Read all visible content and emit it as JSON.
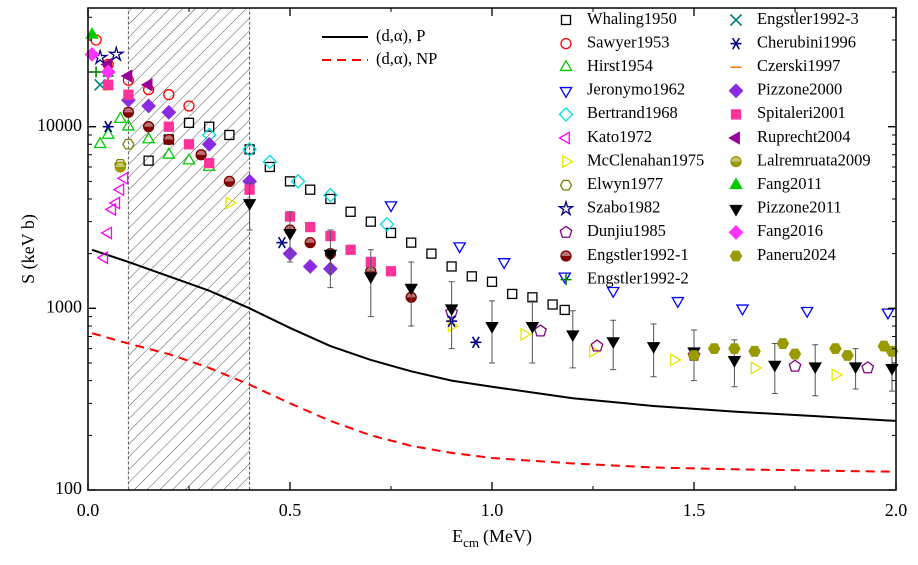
{
  "chart_data": {
    "type": "scatter",
    "x_label": {
      "main": "E",
      "sub": "cm",
      "unit": "(MeV)"
    },
    "y_label": "S (keV b)",
    "xlim": [
      0,
      2.0
    ],
    "xticks": [
      {
        "value": 0,
        "label": "0.0"
      },
      0.5,
      {
        "value": 1,
        "label": "1.0"
      },
      1.5,
      {
        "value": 2,
        "label": "2.0"
      }
    ],
    "ylim": [
      100,
      45000
    ],
    "yticks": [
      100,
      1000,
      10000
    ],
    "log_y": true,
    "shaded_region": [
      0.1,
      0.4
    ],
    "lines": [
      {
        "name": "(d,α), P",
        "color": "#000000",
        "dash": false,
        "x": [
          0.01,
          0.1,
          0.2,
          0.3,
          0.4,
          0.5,
          0.6,
          0.7,
          0.8,
          0.9,
          1.0,
          1.2,
          1.4,
          1.6,
          1.8,
          2.0
        ],
        "values": [
          2100,
          1800,
          1500,
          1250,
          1000,
          780,
          620,
          520,
          450,
          400,
          370,
          320,
          290,
          270,
          255,
          240
        ]
      },
      {
        "name": "(d,α), NP",
        "color": "#ff0000",
        "dash": true,
        "x": [
          0.01,
          0.1,
          0.2,
          0.3,
          0.4,
          0.5,
          0.6,
          0.7,
          0.8,
          0.9,
          1.0,
          1.2,
          1.4,
          1.6,
          1.8,
          2.0
        ],
        "values": [
          730,
          640,
          560,
          470,
          380,
          300,
          240,
          200,
          175,
          160,
          150,
          140,
          133,
          130,
          128,
          126
        ]
      }
    ],
    "series": [
      {
        "name": "Whaling1950",
        "color": "#000000",
        "marker": "square",
        "filled": false,
        "x": [
          0.15,
          0.2,
          0.25,
          0.3,
          0.35,
          0.4,
          0.45,
          0.5,
          0.55,
          0.6,
          0.65,
          0.7,
          0.75,
          0.8,
          0.85,
          0.9,
          0.95,
          1.0,
          1.05,
          1.1,
          1.15,
          1.18
        ],
        "values": [
          6500,
          8500,
          10500,
          10000,
          9000,
          7500,
          6000,
          5000,
          4500,
          4000,
          3400,
          3000,
          2600,
          2300,
          2000,
          1700,
          1500,
          1400,
          1200,
          1150,
          1050,
          980
        ]
      },
      {
        "name": "Sawyer1953",
        "color": "#ff0000",
        "marker": "circle",
        "filled": false,
        "x": [
          0.02,
          0.05,
          0.1,
          0.15,
          0.2,
          0.25
        ],
        "values": [
          30000,
          22000,
          18000,
          16000,
          15000,
          13000
        ]
      },
      {
        "name": "Hirst1954",
        "color": "#00cc00",
        "marker": "triangle-up",
        "filled": false,
        "x": [
          0.03,
          0.05,
          0.08,
          0.1,
          0.15,
          0.2,
          0.25,
          0.3
        ],
        "values": [
          8000,
          9000,
          11000,
          10000,
          8500,
          7000,
          6500,
          6000
        ]
      },
      {
        "name": "Jeronymo1962",
        "color": "#0000ff",
        "marker": "triangle-down",
        "filled": false,
        "x": [
          0.75,
          0.92,
          1.03,
          1.18,
          1.3,
          1.46,
          1.62,
          1.78,
          1.98
        ],
        "values": [
          3700,
          2200,
          1800,
          1500,
          1250,
          1100,
          1000,
          970,
          950
        ]
      },
      {
        "name": "Bertrand1968",
        "color": "#00dddd",
        "marker": "diamond",
        "filled": false,
        "x": [
          0.3,
          0.4,
          0.45,
          0.52,
          0.6,
          0.74
        ],
        "values": [
          9000,
          7500,
          6400,
          5000,
          4200,
          2900
        ]
      },
      {
        "name": "Kato1972",
        "color": "#ff00ff",
        "marker": "triangle-left",
        "filled": false,
        "x": [
          0.04,
          0.05,
          0.06,
          0.07,
          0.08,
          0.09
        ],
        "values": [
          1900,
          2600,
          3500,
          3800,
          4500,
          5200
        ]
      },
      {
        "name": "McClenahan1975",
        "color": "#e6e600",
        "marker": "triangle-right",
        "filled": false,
        "x": [
          0.35,
          0.9,
          1.08,
          1.25,
          1.45,
          1.65,
          1.85
        ],
        "values": [
          3800,
          800,
          720,
          580,
          520,
          470,
          430
        ]
      },
      {
        "name": "Elwyn1977",
        "color": "#808000",
        "marker": "hexagon",
        "filled": false,
        "x": [
          0.08,
          0.1
        ],
        "values": [
          6200,
          8000
        ]
      },
      {
        "name": "Szabo1982",
        "color": "#000080",
        "marker": "star",
        "filled": false,
        "x": [
          0.03,
          0.07
        ],
        "values": [
          24000,
          25000
        ]
      },
      {
        "name": "Dunjiu1985",
        "color": "#800080",
        "marker": "pentagon",
        "filled": false,
        "x": [
          0.9,
          1.12,
          1.26,
          1.5,
          1.75,
          1.93
        ],
        "values": [
          950,
          750,
          620,
          550,
          480,
          470
        ]
      },
      {
        "name": "Engstler1992-1",
        "color": "#800000",
        "marker": "half-circle",
        "filled": true,
        "x": [
          0.1,
          0.15,
          0.2,
          0.28,
          0.35,
          0.5,
          0.55,
          0.6,
          0.7,
          0.8
        ],
        "values": [
          12000,
          10000,
          8500,
          7000,
          5000,
          2700,
          2300,
          2000,
          1600,
          1150
        ]
      },
      {
        "name": "Engstler1992-2",
        "color": "#008000",
        "marker": "plus",
        "filled": false,
        "x": [
          0.02,
          0.05
        ],
        "values": [
          20000,
          19000
        ]
      },
      {
        "name": "Engstler1992-3",
        "color": "#008080",
        "marker": "cross",
        "filled": false,
        "x": [
          0.03
        ],
        "values": [
          17000
        ]
      },
      {
        "name": "Cherubini1996",
        "color": "#000080",
        "marker": "asterisk",
        "filled": false,
        "x": [
          0.05,
          0.48,
          0.9,
          0.96
        ],
        "values": [
          10000,
          2300,
          850,
          650
        ]
      },
      {
        "name": "Czerski1997",
        "color": "#ff8000",
        "marker": "dash",
        "filled": false,
        "x": [
          0.05
        ],
        "values": [
          16000
        ]
      },
      {
        "name": "Pizzone2000",
        "color": "#8a2be2",
        "marker": "diamond",
        "filled": true,
        "x": [
          0.1,
          0.15,
          0.2,
          0.3,
          0.4,
          0.5,
          0.55,
          0.6
        ],
        "values": [
          14000,
          13000,
          12000,
          8000,
          5000,
          2000,
          1700,
          1650
        ]
      },
      {
        "name": "Spitaleri2001",
        "color": "#ff3399",
        "marker": "square",
        "filled": true,
        "x": [
          0.05,
          0.1,
          0.2,
          0.25,
          0.3,
          0.4,
          0.5,
          0.55,
          0.6,
          0.65,
          0.7,
          0.75
        ],
        "values": [
          17000,
          15000,
          10000,
          8000,
          6300,
          4500,
          3200,
          2800,
          2500,
          2100,
          1800,
          1600
        ]
      },
      {
        "name": "Ruprecht2004",
        "color": "#990099",
        "marker": "triangle-left",
        "filled": true,
        "x": [
          0.05,
          0.1,
          0.15
        ],
        "values": [
          22000,
          19000,
          17000
        ]
      },
      {
        "name": "Lalremruata2009",
        "color": "#999900",
        "marker": "half-circle",
        "filled": true,
        "x": [
          0.08
        ],
        "values": [
          6000
        ]
      },
      {
        "name": "Fang2011",
        "color": "#00cc00",
        "marker": "triangle-up",
        "filled": true,
        "x": [
          0.01
        ],
        "values": [
          32000
        ]
      },
      {
        "name": "Pizzone2011",
        "color": "#000000",
        "marker": "triangle-down",
        "filled": true,
        "x": [
          0.4,
          0.5,
          0.6,
          0.7,
          0.8,
          0.9,
          1.0,
          1.1,
          1.2,
          1.3,
          1.4,
          1.5,
          1.6,
          1.7,
          1.8,
          1.9,
          1.99
        ],
        "values": [
          3800,
          2600,
          2000,
          1500,
          1300,
          1000,
          800,
          800,
          720,
          660,
          620,
          580,
          520,
          490,
          480,
          480,
          470
        ],
        "errors": [
          1100,
          800,
          700,
          600,
          500,
          400,
          300,
          300,
          250,
          200,
          200,
          180,
          150,
          150,
          150,
          120,
          120
        ]
      },
      {
        "name": "Fang2016",
        "color": "#ff33ff",
        "marker": "diamond",
        "filled": true,
        "x": [
          0.01,
          0.05
        ],
        "values": [
          25000,
          20000
        ]
      },
      {
        "name": "Paneru2024",
        "color": "#999900",
        "marker": "hexagon",
        "filled": true,
        "x": [
          1.5,
          1.55,
          1.6,
          1.65,
          1.72,
          1.75,
          1.85,
          1.88,
          1.97,
          1.99
        ],
        "values": [
          550,
          600,
          600,
          580,
          640,
          560,
          600,
          550,
          620,
          580
        ]
      }
    ]
  }
}
